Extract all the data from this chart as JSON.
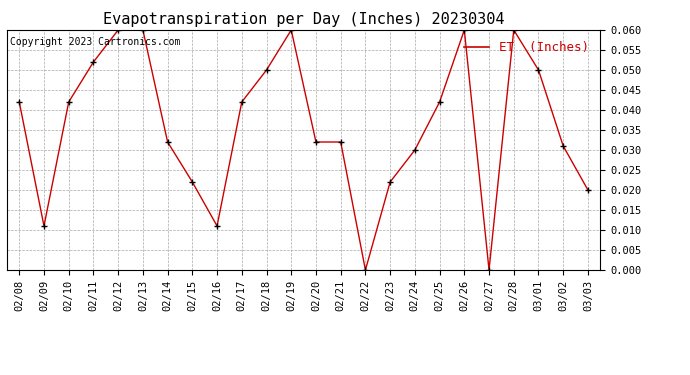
{
  "title": "Evapotranspiration per Day (Inches) 20230304",
  "legend_label": "ET  (Inches)",
  "copyright_text": "Copyright 2023 Cartronics.com",
  "dates": [
    "02/08",
    "02/09",
    "02/10",
    "02/11",
    "02/12",
    "02/13",
    "02/14",
    "02/15",
    "02/16",
    "02/17",
    "02/18",
    "02/19",
    "02/20",
    "02/21",
    "02/22",
    "02/23",
    "02/24",
    "02/25",
    "02/26",
    "02/27",
    "02/28",
    "03/01",
    "03/02",
    "03/03"
  ],
  "values": [
    0.042,
    0.011,
    0.042,
    0.052,
    0.06,
    0.06,
    0.032,
    0.022,
    0.011,
    0.042,
    0.05,
    0.06,
    0.032,
    0.032,
    0.0,
    0.022,
    0.03,
    0.042,
    0.06,
    0.0,
    0.06,
    0.05,
    0.031,
    0.02
  ],
  "ylim": [
    0.0,
    0.06
  ],
  "yticks": [
    0.0,
    0.005,
    0.01,
    0.015,
    0.02,
    0.025,
    0.03,
    0.035,
    0.04,
    0.045,
    0.05,
    0.055,
    0.06
  ],
  "line_color": "#cc0000",
  "marker": "+",
  "marker_color": "#000000",
  "background_color": "#ffffff",
  "grid_color": "#aaaaaa",
  "title_fontsize": 11,
  "tick_fontsize": 7.5,
  "copyright_fontsize": 7,
  "legend_fontsize": 9,
  "legend_color": "#cc0000"
}
